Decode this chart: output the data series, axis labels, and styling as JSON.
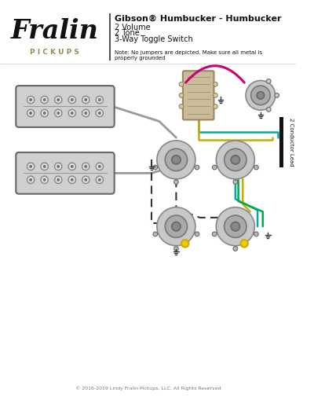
{
  "title": "Gibson® Humbucker - Humbucker",
  "subtitle_lines": [
    "2 Volume",
    "2 Tone",
    "3-Way Toggle Switch"
  ],
  "note": "Note: No jumpers are depicted. Make sure all metal is\nproperly grounded",
  "copyright": "© 2016-2019 Lindy Fralin Pickups, LLC. All Rights Reserved",
  "bg_color": "#ffffff",
  "divider_color": "#555555",
  "wire_gray": "#999999",
  "wire_magenta": "#cc0077",
  "wire_teal": "#00aaaa",
  "wire_gold": "#ccaa00",
  "wire_green": "#00aa44",
  "wire_black": "#222222",
  "wire_yellow": "#eecc00",
  "conductor_label": "2 Conductor Lead"
}
